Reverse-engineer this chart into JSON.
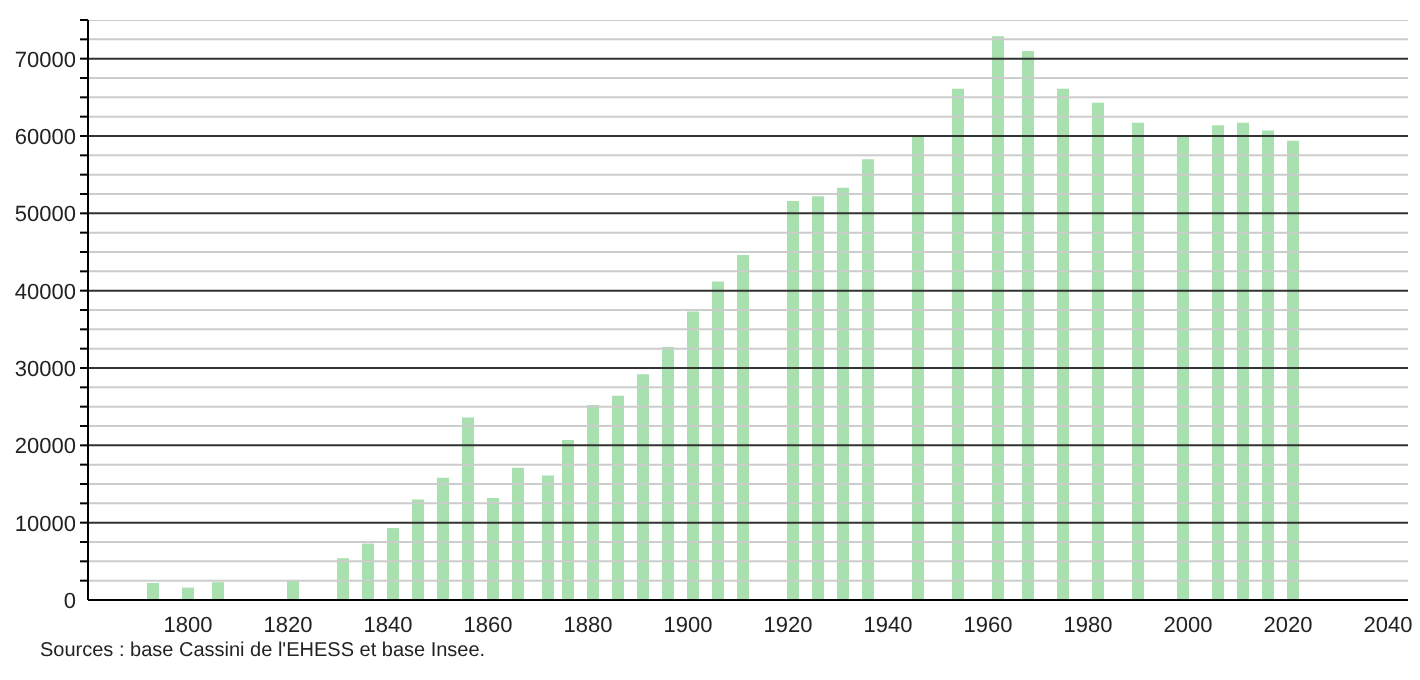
{
  "chart_data": {
    "type": "bar",
    "x": [
      1793,
      1800,
      1806,
      1821,
      1831,
      1836,
      1841,
      1846,
      1851,
      1856,
      1861,
      1866,
      1872,
      1876,
      1881,
      1886,
      1891,
      1896,
      1901,
      1906,
      1911,
      1921,
      1926,
      1931,
      1936,
      1946,
      1954,
      1962,
      1968,
      1975,
      1982,
      1990,
      1999,
      2006,
      2011,
      2016,
      2021
    ],
    "values": [
      2200,
      1600,
      2300,
      2600,
      5400,
      7300,
      9300,
      13000,
      15800,
      23600,
      13200,
      17100,
      16100,
      20700,
      25200,
      26400,
      29200,
      32700,
      37300,
      41200,
      44600,
      51600,
      52200,
      53300,
      57000,
      60100,
      66100,
      72900,
      71000,
      66100,
      64300,
      61700,
      59900,
      61400,
      61700,
      60700,
      59400
    ],
    "color": "#a8e0b0",
    "xlim": [
      1780,
      2044
    ],
    "xticks": [
      1800,
      1820,
      1840,
      1860,
      1880,
      1900,
      1920,
      1940,
      1960,
      1980,
      2000,
      2020,
      2040
    ],
    "ylim": [
      0,
      75000
    ],
    "yticks": [
      0,
      {
        "value": 2500,
        "label": null
      },
      {
        "value": 5000,
        "label": null
      },
      {
        "value": 7500,
        "label": null
      },
      10000,
      {
        "value": 12500,
        "label": null
      },
      {
        "value": 15000,
        "label": null
      },
      {
        "value": 17500,
        "label": null
      },
      20000,
      {
        "value": 22500,
        "label": null
      },
      {
        "value": 25000,
        "label": null
      },
      {
        "value": 27500,
        "label": null
      },
      30000,
      {
        "value": 32500,
        "label": null
      },
      {
        "value": 35000,
        "label": null
      },
      {
        "value": 37500,
        "label": null
      },
      40000,
      {
        "value": 42500,
        "label": null
      },
      {
        "value": 45000,
        "label": null
      },
      {
        "value": 47500,
        "label": null
      },
      50000,
      {
        "value": 52500,
        "label": null
      },
      {
        "value": 55000,
        "label": null
      },
      {
        "value": 57500,
        "label": null
      },
      60000,
      {
        "value": 62500,
        "label": null
      },
      {
        "value": 65000,
        "label": null
      },
      {
        "value": 67500,
        "label": null
      },
      70000,
      {
        "value": 72500,
        "label": null
      },
      {
        "value": 75000,
        "label": null
      }
    ],
    "grid": "y",
    "annotations": [
      "Sources : base Cassini de l'EHESS et base Insee."
    ]
  }
}
